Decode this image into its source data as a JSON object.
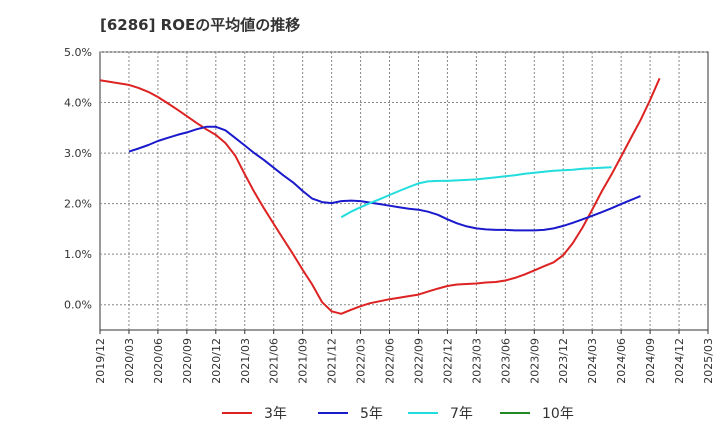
{
  "chart_data": {
    "type": "line",
    "title": "[6286]  ROEの平均値の推移",
    "xlabel": "",
    "ylabel": "",
    "ylim": [
      -0.5,
      5.0
    ],
    "yticks": [
      0.0,
      1.0,
      2.0,
      3.0,
      4.0,
      5.0
    ],
    "ytick_labels": [
      "0.0%",
      "1.0%",
      "2.0%",
      "3.0%",
      "4.0%",
      "5.0%"
    ],
    "categories": [
      "2019/12",
      "2020/03",
      "2020/06",
      "2020/09",
      "2020/12",
      "2021/03",
      "2021/06",
      "2021/09",
      "2021/12",
      "2022/03",
      "2022/06",
      "2022/09",
      "2022/12",
      "2023/03",
      "2023/06",
      "2023/09",
      "2023/12",
      "2024/03",
      "2024/06",
      "2024/09",
      "2024/12",
      "2025/03"
    ],
    "grid": true,
    "legend_position": "bottom",
    "series": [
      {
        "name": "3年",
        "color": "#dd2222",
        "points": [
          [
            0,
            4.44
          ],
          [
            1,
            4.35
          ],
          [
            1.33,
            4.29
          ],
          [
            1.67,
            4.21
          ],
          [
            2,
            4.11
          ],
          [
            2.33,
            3.99
          ],
          [
            2.67,
            3.86
          ],
          [
            3,
            3.73
          ],
          [
            3.33,
            3.6
          ],
          [
            3.67,
            3.47
          ],
          [
            4,
            3.36
          ],
          [
            4.33,
            3.2
          ],
          [
            4.67,
            2.95
          ],
          [
            5,
            2.58
          ],
          [
            5.33,
            2.23
          ],
          [
            5.67,
            1.9
          ],
          [
            6,
            1.6
          ],
          [
            6.33,
            1.3
          ],
          [
            6.67,
            1.0
          ],
          [
            7,
            0.69
          ],
          [
            7.33,
            0.4
          ],
          [
            7.67,
            0.05
          ],
          [
            8,
            -0.13
          ],
          [
            8.33,
            -0.18
          ],
          [
            8.67,
            -0.1
          ],
          [
            9,
            -0.03
          ],
          [
            9.33,
            0.03
          ],
          [
            9.67,
            0.07
          ],
          [
            10,
            0.11
          ],
          [
            10.33,
            0.14
          ],
          [
            10.67,
            0.17
          ],
          [
            11,
            0.2
          ],
          [
            11.33,
            0.26
          ],
          [
            11.67,
            0.32
          ],
          [
            12,
            0.37
          ],
          [
            12.33,
            0.4
          ],
          [
            12.67,
            0.41
          ],
          [
            13,
            0.42
          ],
          [
            13.33,
            0.44
          ],
          [
            13.67,
            0.45
          ],
          [
            14,
            0.48
          ],
          [
            14.33,
            0.53
          ],
          [
            14.67,
            0.6
          ],
          [
            15,
            0.68
          ],
          [
            15.33,
            0.76
          ],
          [
            15.67,
            0.84
          ],
          [
            16,
            0.98
          ],
          [
            16.33,
            1.22
          ],
          [
            16.67,
            1.53
          ],
          [
            17,
            1.88
          ],
          [
            17.33,
            2.24
          ],
          [
            17.67,
            2.58
          ],
          [
            18,
            2.93
          ],
          [
            18.33,
            3.29
          ],
          [
            18.67,
            3.65
          ],
          [
            19,
            4.05
          ],
          [
            19.33,
            4.48
          ]
        ]
      },
      {
        "name": "5年",
        "color": "#1a1acc",
        "points": [
          [
            1,
            3.03
          ],
          [
            1.33,
            3.09
          ],
          [
            1.67,
            3.16
          ],
          [
            2,
            3.24
          ],
          [
            2.33,
            3.3
          ],
          [
            2.67,
            3.36
          ],
          [
            3,
            3.41
          ],
          [
            3.33,
            3.47
          ],
          [
            3.67,
            3.52
          ],
          [
            4,
            3.52
          ],
          [
            4.33,
            3.45
          ],
          [
            4.67,
            3.3
          ],
          [
            5,
            3.15
          ],
          [
            5.33,
            3.0
          ],
          [
            5.67,
            2.86
          ],
          [
            6,
            2.71
          ],
          [
            6.33,
            2.56
          ],
          [
            6.67,
            2.42
          ],
          [
            7,
            2.25
          ],
          [
            7.33,
            2.1
          ],
          [
            7.67,
            2.03
          ],
          [
            8,
            2.01
          ],
          [
            8.33,
            2.05
          ],
          [
            8.67,
            2.06
          ],
          [
            9,
            2.05
          ],
          [
            9.33,
            2.02
          ],
          [
            9.67,
            1.99
          ],
          [
            10,
            1.96
          ],
          [
            10.33,
            1.93
          ],
          [
            10.67,
            1.9
          ],
          [
            11,
            1.88
          ],
          [
            11.33,
            1.84
          ],
          [
            11.67,
            1.78
          ],
          [
            12,
            1.69
          ],
          [
            12.33,
            1.61
          ],
          [
            12.67,
            1.55
          ],
          [
            13,
            1.51
          ],
          [
            13.33,
            1.49
          ],
          [
            13.67,
            1.48
          ],
          [
            14,
            1.48
          ],
          [
            14.33,
            1.47
          ],
          [
            14.67,
            1.47
          ],
          [
            15,
            1.47
          ],
          [
            15.33,
            1.48
          ],
          [
            15.67,
            1.51
          ],
          [
            16,
            1.56
          ],
          [
            16.33,
            1.62
          ],
          [
            16.67,
            1.69
          ],
          [
            17,
            1.76
          ],
          [
            17.33,
            1.83
          ],
          [
            17.67,
            1.91
          ],
          [
            18,
            1.99
          ],
          [
            18.33,
            2.07
          ],
          [
            18.67,
            2.15
          ]
        ]
      },
      {
        "name": "7年",
        "color": "#22dddd",
        "points": [
          [
            8.33,
            1.73
          ],
          [
            8.67,
            1.84
          ],
          [
            9,
            1.93
          ],
          [
            9.33,
            2.01
          ],
          [
            9.67,
            2.09
          ],
          [
            10,
            2.17
          ],
          [
            10.33,
            2.25
          ],
          [
            10.67,
            2.33
          ],
          [
            11,
            2.4
          ],
          [
            11.33,
            2.44
          ],
          [
            11.67,
            2.45
          ],
          [
            12,
            2.45
          ],
          [
            12.33,
            2.46
          ],
          [
            12.67,
            2.47
          ],
          [
            13,
            2.48
          ],
          [
            13.33,
            2.5
          ],
          [
            13.67,
            2.52
          ],
          [
            14,
            2.54
          ],
          [
            14.33,
            2.56
          ],
          [
            14.67,
            2.59
          ],
          [
            15,
            2.61
          ],
          [
            15.33,
            2.63
          ],
          [
            15.67,
            2.65
          ],
          [
            16,
            2.66
          ],
          [
            16.33,
            2.67
          ],
          [
            16.67,
            2.69
          ],
          [
            17,
            2.7
          ],
          [
            17.33,
            2.71
          ],
          [
            17.67,
            2.72
          ]
        ]
      },
      {
        "name": "10年",
        "color": "#228822",
        "points": []
      }
    ]
  }
}
